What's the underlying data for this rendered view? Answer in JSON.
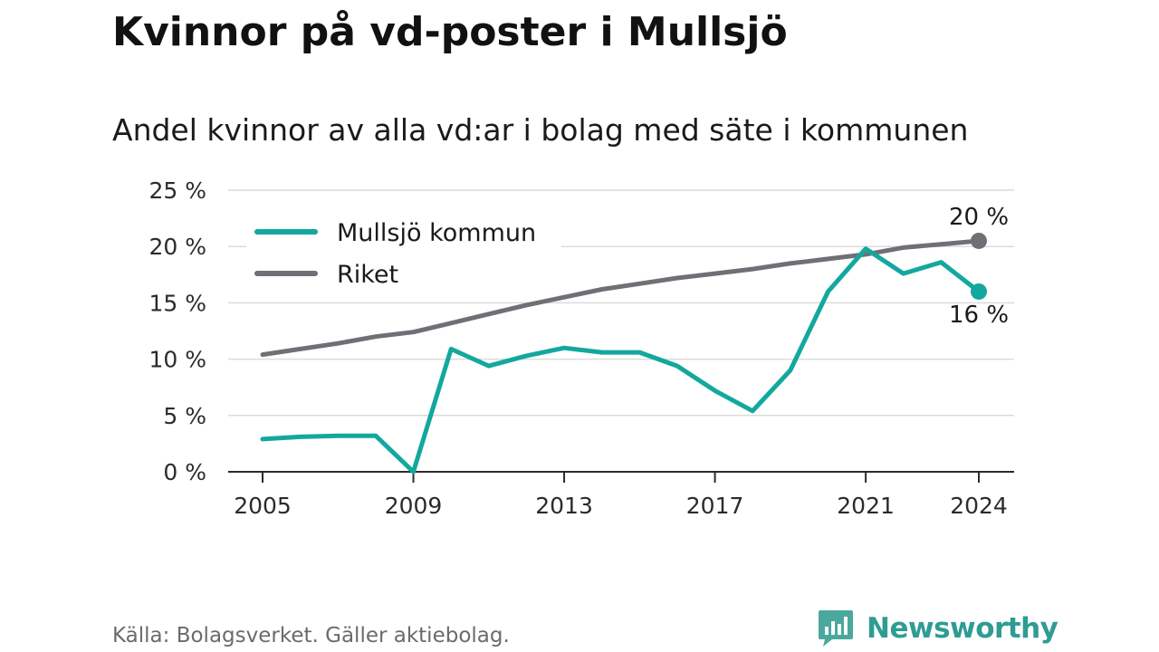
{
  "title": "Kvinnor på vd-poster i Mullsjö",
  "subtitle": "Andel kvinnor av alla vd:ar i bolag med säte i kommunen",
  "source": "Källa: Bolagsverket. Gäller aktiebolag.",
  "brand": {
    "name": "Newsworthy",
    "icon": "newsworthy-logo-icon",
    "color": "#2f9c93"
  },
  "chart_data": {
    "type": "line",
    "x": [
      2005,
      2006,
      2007,
      2008,
      2009,
      2010,
      2011,
      2012,
      2013,
      2014,
      2015,
      2016,
      2017,
      2018,
      2019,
      2020,
      2021,
      2022,
      2023,
      2024
    ],
    "x_tick_labels": [
      "2005",
      "2009",
      "2013",
      "2017",
      "2021",
      "2024"
    ],
    "x_ticks": [
      2005,
      2009,
      2013,
      2017,
      2021,
      2024
    ],
    "y_ticks": [
      0,
      5,
      10,
      15,
      20,
      25
    ],
    "y_tick_labels": [
      "0 %",
      "5 %",
      "10 %",
      "15 %",
      "20 %",
      "25 %"
    ],
    "ylim": [
      0,
      25
    ],
    "xlim": [
      2005,
      2024
    ],
    "grid": "horizontal",
    "legend_position": "top-left",
    "series": [
      {
        "name": "Mullsjö kommun",
        "color": "#13a89e",
        "values": [
          2.9,
          3.1,
          3.2,
          3.2,
          0.0,
          10.9,
          9.4,
          10.3,
          11.0,
          10.6,
          10.6,
          9.4,
          7.2,
          5.4,
          9.0,
          16.0,
          19.8,
          17.6,
          18.6,
          16.0
        ]
      },
      {
        "name": "Riket",
        "color": "#706f75",
        "values": [
          10.4,
          10.9,
          11.4,
          12.0,
          12.4,
          13.2,
          14.0,
          14.8,
          15.5,
          16.2,
          16.7,
          17.2,
          17.6,
          18.0,
          18.5,
          18.9,
          19.3,
          19.9,
          20.2,
          20.5
        ]
      }
    ],
    "end_labels": [
      {
        "series": "Riket",
        "text": "20 %"
      },
      {
        "series": "Mullsjö kommun",
        "text": "16 %"
      }
    ]
  }
}
